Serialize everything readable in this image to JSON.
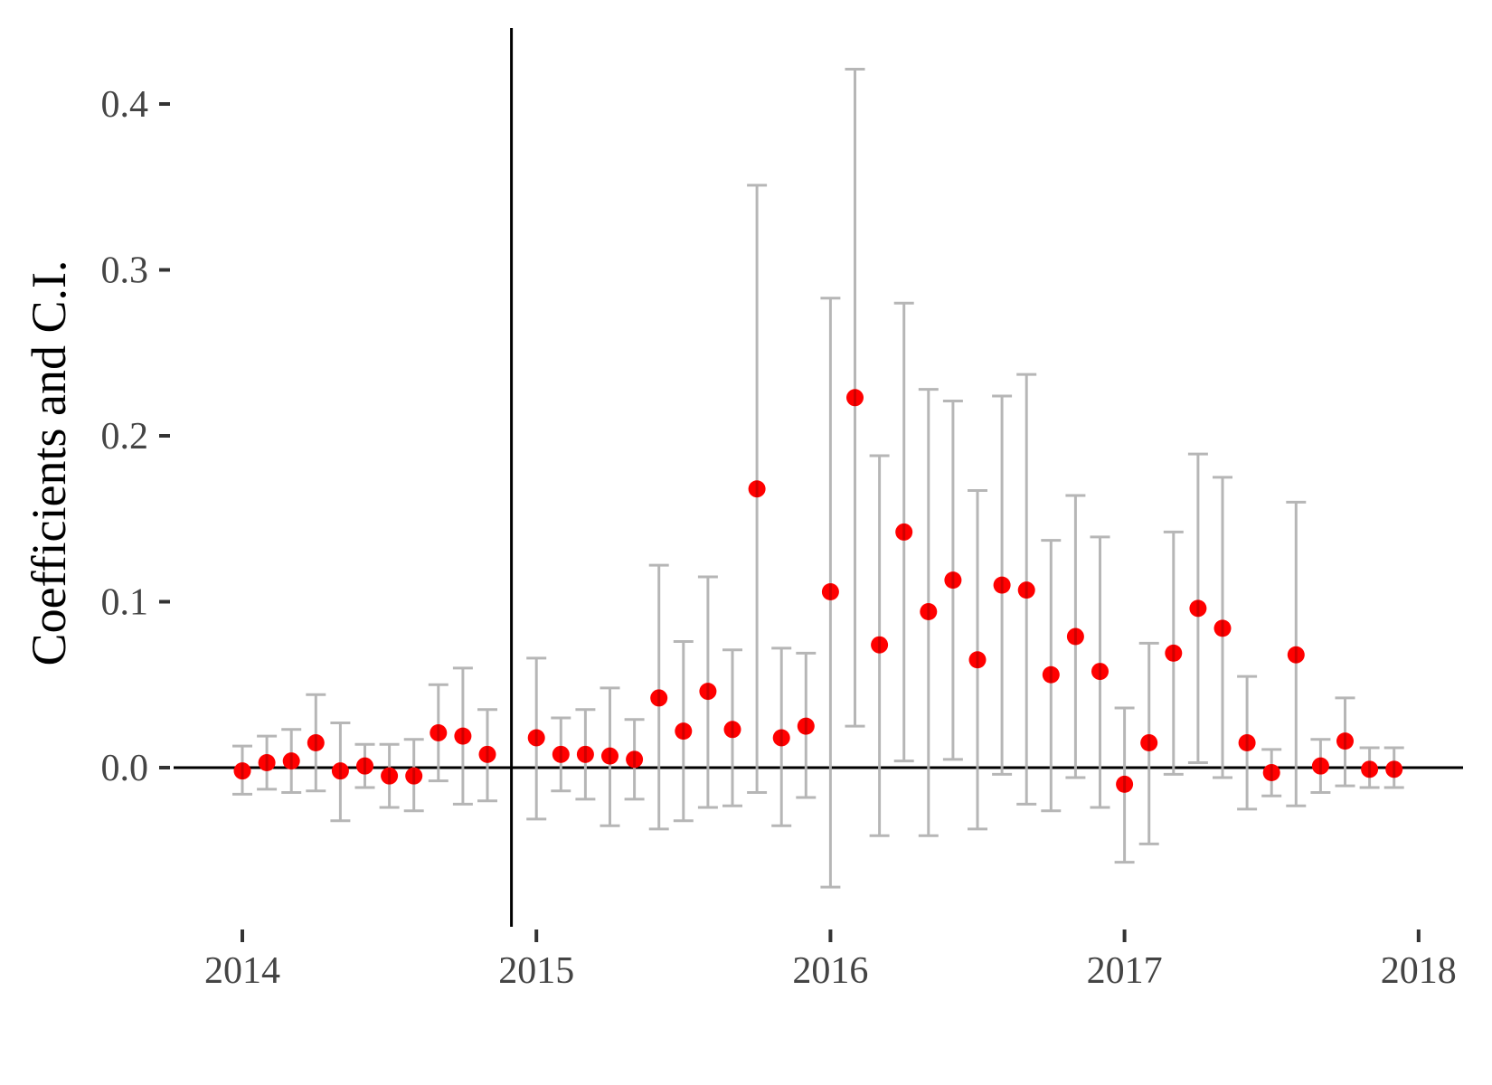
{
  "chart_data": {
    "type": "scatter",
    "subtype": "coefficient plot with error bars",
    "title": "",
    "xlabel": "",
    "ylabel": "Coefficients and C.I.",
    "xlim": [
      2013.75,
      2018.17
    ],
    "ylim": [
      -0.09,
      0.445
    ],
    "x_ticks": [
      2014,
      2015,
      2016,
      2017,
      2018
    ],
    "x_tick_labels": [
      "2014",
      "2015",
      "2016",
      "2017",
      "2018"
    ],
    "y_ticks": [
      0.0,
      0.1,
      0.2,
      0.3,
      0.4
    ],
    "y_tick_labels": [
      "0.0",
      "0.1",
      "0.2",
      "0.3",
      "0.4"
    ],
    "grid": false,
    "legend": null,
    "reference_lines": {
      "horizontal": 0.0,
      "vertical": "2014-12"
    },
    "colors": {
      "point": "#ff0000",
      "errorbar": "#b3b3b3",
      "reference_line": "#000000",
      "tick_label": "#444444"
    },
    "series": [
      {
        "name": "coefficient",
        "points": [
          {
            "month": "2014-01",
            "estimate": -0.002,
            "lower": -0.016,
            "upper": 0.013
          },
          {
            "month": "2014-02",
            "estimate": 0.003,
            "lower": -0.013,
            "upper": 0.019
          },
          {
            "month": "2014-03",
            "estimate": 0.004,
            "lower": -0.015,
            "upper": 0.023
          },
          {
            "month": "2014-04",
            "estimate": 0.015,
            "lower": -0.014,
            "upper": 0.044
          },
          {
            "month": "2014-05",
            "estimate": -0.002,
            "lower": -0.032,
            "upper": 0.027
          },
          {
            "month": "2014-06",
            "estimate": 0.001,
            "lower": -0.012,
            "upper": 0.014
          },
          {
            "month": "2014-07",
            "estimate": -0.005,
            "lower": -0.024,
            "upper": 0.014
          },
          {
            "month": "2014-08",
            "estimate": -0.005,
            "lower": -0.026,
            "upper": 0.017
          },
          {
            "month": "2014-09",
            "estimate": 0.021,
            "lower": -0.008,
            "upper": 0.05
          },
          {
            "month": "2014-10",
            "estimate": 0.019,
            "lower": -0.022,
            "upper": 0.06
          },
          {
            "month": "2014-11",
            "estimate": 0.008,
            "lower": -0.02,
            "upper": 0.035
          },
          {
            "month": "2015-01",
            "estimate": 0.018,
            "lower": -0.031,
            "upper": 0.066
          },
          {
            "month": "2015-02",
            "estimate": 0.008,
            "lower": -0.014,
            "upper": 0.03
          },
          {
            "month": "2015-03",
            "estimate": 0.008,
            "lower": -0.019,
            "upper": 0.035
          },
          {
            "month": "2015-04",
            "estimate": 0.007,
            "lower": -0.035,
            "upper": 0.048
          },
          {
            "month": "2015-05",
            "estimate": 0.005,
            "lower": -0.019,
            "upper": 0.029
          },
          {
            "month": "2015-06",
            "estimate": 0.042,
            "lower": -0.037,
            "upper": 0.122
          },
          {
            "month": "2015-07",
            "estimate": 0.022,
            "lower": -0.032,
            "upper": 0.076
          },
          {
            "month": "2015-08",
            "estimate": 0.046,
            "lower": -0.024,
            "upper": 0.115
          },
          {
            "month": "2015-09",
            "estimate": 0.023,
            "lower": -0.023,
            "upper": 0.071
          },
          {
            "month": "2015-10",
            "estimate": 0.168,
            "lower": -0.015,
            "upper": 0.351
          },
          {
            "month": "2015-11",
            "estimate": 0.018,
            "lower": -0.035,
            "upper": 0.072
          },
          {
            "month": "2015-12",
            "estimate": 0.025,
            "lower": -0.018,
            "upper": 0.069
          },
          {
            "month": "2016-01",
            "estimate": 0.106,
            "lower": -0.072,
            "upper": 0.283
          },
          {
            "month": "2016-02",
            "estimate": 0.223,
            "lower": 0.025,
            "upper": 0.421
          },
          {
            "month": "2016-03",
            "estimate": 0.074,
            "lower": -0.041,
            "upper": 0.188
          },
          {
            "month": "2016-04",
            "estimate": 0.142,
            "lower": 0.004,
            "upper": 0.28
          },
          {
            "month": "2016-05",
            "estimate": 0.094,
            "lower": -0.041,
            "upper": 0.228
          },
          {
            "month": "2016-06",
            "estimate": 0.113,
            "lower": 0.005,
            "upper": 0.221
          },
          {
            "month": "2016-07",
            "estimate": 0.065,
            "lower": -0.037,
            "upper": 0.167
          },
          {
            "month": "2016-08",
            "estimate": 0.11,
            "lower": -0.004,
            "upper": 0.224
          },
          {
            "month": "2016-09",
            "estimate": 0.107,
            "lower": -0.022,
            "upper": 0.237
          },
          {
            "month": "2016-10",
            "estimate": 0.056,
            "lower": -0.026,
            "upper": 0.137
          },
          {
            "month": "2016-11",
            "estimate": 0.079,
            "lower": -0.006,
            "upper": 0.164
          },
          {
            "month": "2016-12",
            "estimate": 0.058,
            "lower": -0.024,
            "upper": 0.139
          },
          {
            "month": "2017-01",
            "estimate": -0.01,
            "lower": -0.057,
            "upper": 0.036
          },
          {
            "month": "2017-02",
            "estimate": 0.015,
            "lower": -0.046,
            "upper": 0.075
          },
          {
            "month": "2017-03",
            "estimate": 0.069,
            "lower": -0.004,
            "upper": 0.142
          },
          {
            "month": "2017-04",
            "estimate": 0.096,
            "lower": 0.003,
            "upper": 0.189
          },
          {
            "month": "2017-05",
            "estimate": 0.084,
            "lower": -0.006,
            "upper": 0.175
          },
          {
            "month": "2017-06",
            "estimate": 0.015,
            "lower": -0.025,
            "upper": 0.055
          },
          {
            "month": "2017-07",
            "estimate": -0.003,
            "lower": -0.017,
            "upper": 0.011
          },
          {
            "month": "2017-08",
            "estimate": 0.068,
            "lower": -0.023,
            "upper": 0.16
          },
          {
            "month": "2017-09",
            "estimate": 0.001,
            "lower": -0.015,
            "upper": 0.017
          },
          {
            "month": "2017-10",
            "estimate": 0.016,
            "lower": -0.011,
            "upper": 0.042
          },
          {
            "month": "2017-11",
            "estimate": -0.001,
            "lower": -0.012,
            "upper": 0.012
          },
          {
            "month": "2017-12",
            "estimate": -0.001,
            "lower": -0.012,
            "upper": 0.012
          }
        ]
      }
    ]
  }
}
